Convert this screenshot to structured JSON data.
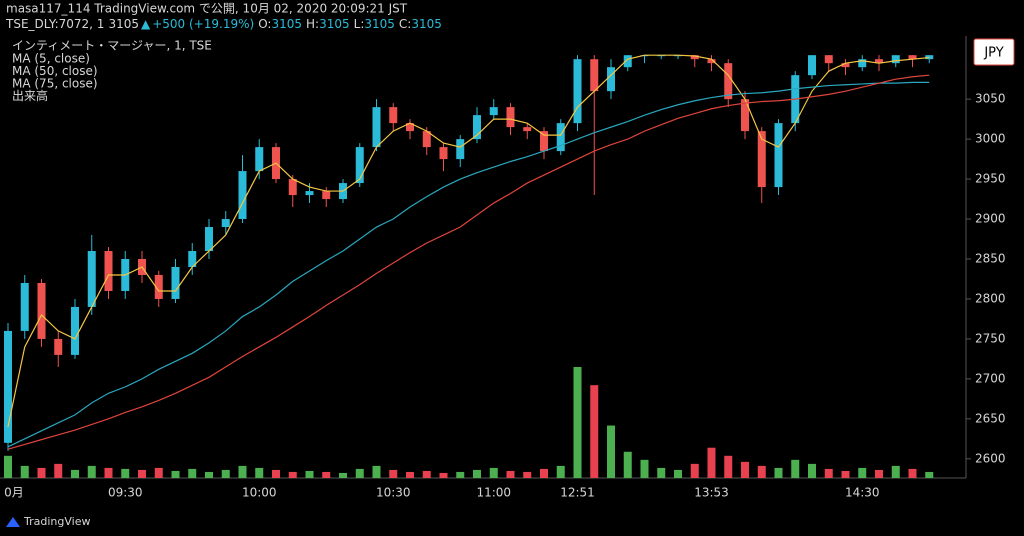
{
  "header": {
    "line1": "masa117_114 TradingView.com で公開, 10月 02, 2020 20:09:21 JST",
    "symbol": "TSE_DLY:7072, 1",
    "last": "3105",
    "change": "+500 (+19.19%)",
    "ohlc": [
      {
        "label": "O:",
        "value": "3105"
      },
      {
        "label": "H:",
        "value": "3105"
      },
      {
        "label": "L:",
        "value": "3105"
      },
      {
        "label": "C:",
        "value": "3105"
      }
    ]
  },
  "footer": {
    "brand": "TradingView"
  },
  "chart_data": {
    "type": "candlestick",
    "title": "インティメート・マージャー, 1, TSE",
    "currency": "JPY",
    "categories": [
      "0月",
      null,
      null,
      null,
      null,
      null,
      null,
      "09:30",
      null,
      null,
      null,
      null,
      null,
      null,
      null,
      "10:00",
      null,
      null,
      null,
      null,
      null,
      null,
      null,
      "10:30",
      null,
      null,
      null,
      null,
      null,
      "11:00",
      null,
      null,
      null,
      null,
      "12:51",
      null,
      null,
      null,
      null,
      null,
      null,
      null,
      "13:53",
      null,
      null,
      null,
      null,
      null,
      null,
      null,
      null,
      "14:30",
      null,
      null,
      null,
      null
    ],
    "open": [
      2620,
      2760,
      2820,
      2750,
      2730,
      2790,
      2860,
      2810,
      2850,
      2830,
      2800,
      2840,
      2860,
      2890,
      2900,
      2960,
      2990,
      2950,
      2930,
      2935,
      2925,
      2945,
      2990,
      3040,
      3020,
      3010,
      2990,
      2975,
      3000,
      3030,
      3040,
      3015,
      3010,
      2985,
      3020,
      3100,
      3060,
      3090,
      3105,
      3105,
      3105,
      3105,
      3100,
      3095,
      3050,
      3010,
      2940,
      3020,
      3080,
      3105,
      3095,
      3090,
      3100,
      3095,
      3105,
      3100
    ],
    "high": [
      2770,
      2830,
      2825,
      2760,
      2800,
      2880,
      2865,
      2860,
      2860,
      2835,
      2850,
      2870,
      2900,
      2910,
      2980,
      3000,
      2995,
      2955,
      2945,
      2940,
      2950,
      2995,
      3050,
      3045,
      3025,
      3015,
      2995,
      3005,
      3040,
      3050,
      3045,
      3020,
      3015,
      3025,
      3105,
      3105,
      3100,
      3105,
      3105,
      3105,
      3105,
      3105,
      3105,
      3100,
      3060,
      3015,
      3025,
      3085,
      3105,
      3105,
      3100,
      3105,
      3105,
      3105,
      3105,
      3105
    ],
    "low": [
      2610,
      2750,
      2740,
      2715,
      2725,
      2780,
      2800,
      2800,
      2820,
      2790,
      2795,
      2830,
      2850,
      2880,
      2895,
      2950,
      2945,
      2915,
      2920,
      2915,
      2920,
      2940,
      2985,
      3010,
      3000,
      2980,
      2960,
      2965,
      2995,
      3025,
      3005,
      3000,
      2975,
      2980,
      3010,
      2930,
      3050,
      3085,
      3095,
      3100,
      3100,
      3090,
      3085,
      3040,
      3000,
      2920,
      2930,
      3010,
      3075,
      3085,
      3080,
      3085,
      3085,
      3090,
      3090,
      3095
    ],
    "close": [
      2760,
      2820,
      2750,
      2730,
      2790,
      2860,
      2810,
      2850,
      2830,
      2800,
      2840,
      2860,
      2890,
      2900,
      2960,
      2990,
      2950,
      2930,
      2935,
      2925,
      2945,
      2990,
      3040,
      3020,
      3010,
      2990,
      2975,
      3000,
      3030,
      3040,
      3015,
      3010,
      2985,
      3020,
      3100,
      3060,
      3090,
      3105,
      3105,
      3105,
      3105,
      3100,
      3095,
      3050,
      3010,
      2940,
      3020,
      3080,
      3105,
      3095,
      3090,
      3100,
      3095,
      3105,
      3100,
      3105
    ],
    "volume_name": "出来高",
    "volume": [
      22,
      12,
      10,
      14,
      8,
      12,
      10,
      9,
      8,
      10,
      7,
      9,
      6,
      8,
      12,
      10,
      8,
      6,
      7,
      6,
      5,
      9,
      12,
      8,
      6,
      7,
      5,
      6,
      8,
      10,
      7,
      6,
      9,
      12,
      110,
      92,
      52,
      26,
      18,
      10,
      8,
      14,
      30,
      22,
      16,
      12,
      10,
      18,
      14,
      9,
      7,
      10,
      8,
      12,
      9,
      6
    ],
    "up_color": "#2bbbd8",
    "down_color": "#ef5350",
    "volume_up_color": "#4caf50",
    "volume_down_color": "#e8414f",
    "lines": [
      {
        "name": "MA (5, close)",
        "color": "#f5c542",
        "values": [
          2640,
          2740,
          2780,
          2760,
          2750,
          2790,
          2830,
          2830,
          2840,
          2810,
          2810,
          2840,
          2860,
          2880,
          2920,
          2960,
          2970,
          2950,
          2940,
          2935,
          2935,
          2950,
          2990,
          3010,
          3020,
          3010,
          2995,
          2990,
          3005,
          3025,
          3025,
          3020,
          3005,
          3005,
          3040,
          3060,
          3080,
          3100,
          3105,
          3105,
          3105,
          3104,
          3100,
          3080,
          3050,
          3000,
          2990,
          3020,
          3060,
          3085,
          3095,
          3098,
          3095,
          3098,
          3100,
          3102
        ]
      },
      {
        "name": "MA (50, close)",
        "color": "#2aa7be",
        "values": [
          2615,
          2625,
          2635,
          2645,
          2655,
          2670,
          2682,
          2690,
          2700,
          2712,
          2722,
          2732,
          2745,
          2760,
          2778,
          2790,
          2805,
          2822,
          2835,
          2848,
          2860,
          2875,
          2890,
          2900,
          2915,
          2928,
          2940,
          2950,
          2958,
          2965,
          2972,
          2978,
          2985,
          2992,
          3000,
          3008,
          3015,
          3022,
          3030,
          3037,
          3043,
          3048,
          3052,
          3055,
          3057,
          3058,
          3060,
          3063,
          3065,
          3067,
          3068,
          3069,
          3070,
          3070,
          3071,
          3071
        ]
      },
      {
        "name": "MA (75, close)",
        "color": "#e0453c",
        "values": [
          2612,
          2618,
          2624,
          2630,
          2636,
          2643,
          2650,
          2658,
          2665,
          2673,
          2682,
          2692,
          2702,
          2715,
          2728,
          2740,
          2752,
          2765,
          2778,
          2792,
          2805,
          2818,
          2832,
          2845,
          2858,
          2870,
          2880,
          2890,
          2905,
          2920,
          2932,
          2945,
          2955,
          2965,
          2975,
          2985,
          2993,
          3000,
          3010,
          3018,
          3026,
          3032,
          3038,
          3042,
          3045,
          3047,
          3048,
          3050,
          3053,
          3056,
          3060,
          3065,
          3070,
          3075,
          3078,
          3080
        ]
      }
    ],
    "ylim": [
      2576,
      3124
    ],
    "yticks": [
      2600,
      2650,
      2700,
      2750,
      2800,
      2850,
      2900,
      2950,
      3000,
      3050
    ]
  }
}
